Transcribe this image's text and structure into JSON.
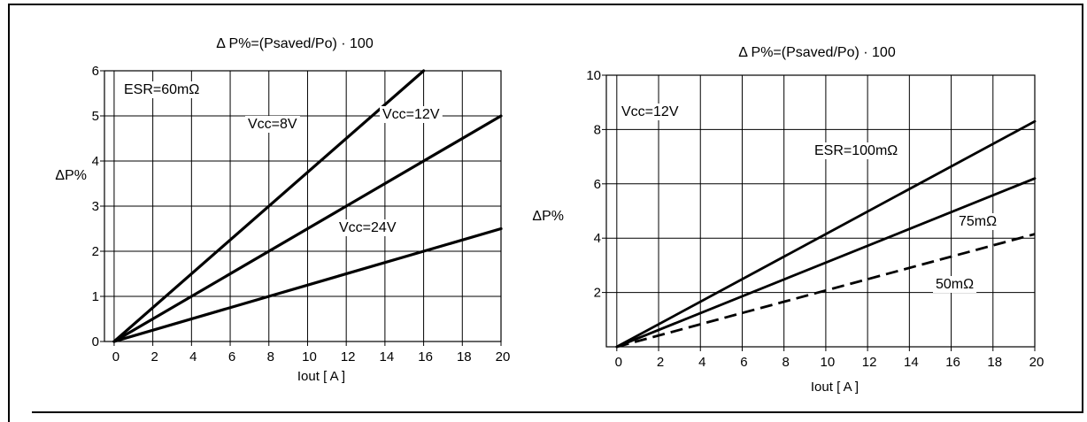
{
  "chart_data": [
    {
      "type": "line",
      "title": "Δ P%=(Psaved/Po)  · 100",
      "xlabel": "Iout  [ A ]",
      "ylabel": "ΔP%",
      "xlim": [
        -0.5,
        20
      ],
      "ylim": [
        0,
        6
      ],
      "xticks": [
        "0",
        "2",
        "4",
        "6",
        "8",
        "10",
        "12",
        "14",
        "16",
        "18",
        "20"
      ],
      "yticks": [
        "0",
        "1",
        "2",
        "3",
        "4",
        "5",
        "6"
      ],
      "grid": true,
      "annotations": [
        "ESR=60mΩ"
      ],
      "series": [
        {
          "name": "Vcc=8V",
          "x": [
            0,
            16
          ],
          "y": [
            0,
            6.0
          ],
          "style": "solid"
        },
        {
          "name": "Vcc=12V",
          "x": [
            0,
            20
          ],
          "y": [
            0,
            5.0
          ],
          "style": "solid"
        },
        {
          "name": "Vcc=24V",
          "x": [
            0,
            20
          ],
          "y": [
            0,
            2.5
          ],
          "style": "solid"
        }
      ]
    },
    {
      "type": "line",
      "title": "Δ P%=(Psaved/Po) · 100",
      "xlabel": "Iout  [ A ]",
      "ylabel": "ΔP%",
      "xlim": [
        -0.5,
        20
      ],
      "ylim": [
        0,
        10
      ],
      "xticks": [
        "0",
        "2",
        "4",
        "6",
        "8",
        "10",
        "12",
        "14",
        "16",
        "18",
        "20"
      ],
      "yticks": [
        "2",
        "4",
        "6",
        "8",
        "10"
      ],
      "grid": true,
      "annotations": [
        "Vcc=12V"
      ],
      "series": [
        {
          "name": "ESR=100mΩ",
          "x": [
            0,
            20
          ],
          "y": [
            0,
            8.3
          ],
          "style": "solid"
        },
        {
          "name": "75mΩ",
          "x": [
            0,
            20
          ],
          "y": [
            0,
            6.2
          ],
          "style": "solid"
        },
        {
          "name": "50mΩ",
          "x": [
            0,
            20
          ],
          "y": [
            0,
            4.15
          ],
          "style": "dashed"
        }
      ]
    }
  ]
}
